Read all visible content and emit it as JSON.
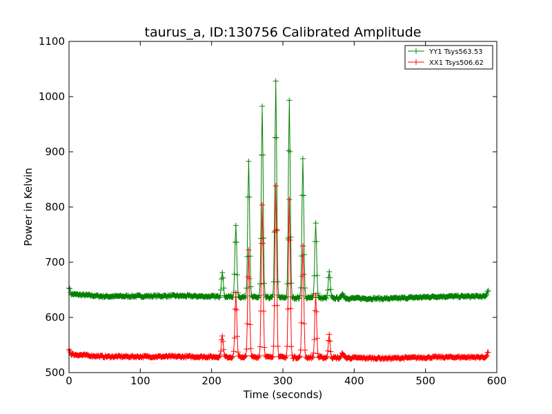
{
  "chart_data": {
    "type": "line",
    "title": "taurus_a, ID:130756 Calibrated Amplitude",
    "xlabel": "Time (seconds)",
    "ylabel": "Power in Kelvin",
    "xlim": [
      0,
      600
    ],
    "ylim": [
      500,
      1100
    ],
    "xticks": [
      0,
      100,
      200,
      300,
      400,
      500,
      600
    ],
    "yticks": [
      500,
      600,
      700,
      800,
      900,
      1000,
      1100
    ],
    "grid": false,
    "legend_position": "top-right",
    "marker": "plus",
    "series": [
      {
        "name": "YY1 Tsys563.53",
        "color": "#008000",
        "start": 0,
        "end": 588,
        "baseline": [
          [
            0,
            655
          ],
          [
            3,
            642
          ],
          [
            50,
            638
          ],
          [
            150,
            639
          ],
          [
            280,
            636
          ],
          [
            450,
            634
          ],
          [
            520,
            638
          ],
          [
            585,
            638
          ],
          [
            588,
            650
          ]
        ],
        "peaks": [
          [
            215,
            683
          ],
          [
            234,
            768
          ],
          [
            252,
            883
          ],
          [
            271,
            982
          ],
          [
            290,
            1027
          ],
          [
            309,
            992
          ],
          [
            328,
            887
          ],
          [
            346,
            772
          ],
          [
            365,
            683
          ],
          [
            384,
            644
          ]
        ]
      },
      {
        "name": "XX1 Tsys506.62",
        "color": "#ff0000",
        "start": 0,
        "end": 588,
        "baseline": [
          [
            0,
            543
          ],
          [
            3,
            533
          ],
          [
            50,
            529
          ],
          [
            150,
            529
          ],
          [
            280,
            528
          ],
          [
            450,
            526
          ],
          [
            520,
            528
          ],
          [
            585,
            528
          ],
          [
            588,
            538
          ]
        ],
        "peaks": [
          [
            215,
            568
          ],
          [
            234,
            645
          ],
          [
            252,
            722
          ],
          [
            271,
            805
          ],
          [
            290,
            838
          ],
          [
            309,
            813
          ],
          [
            328,
            728
          ],
          [
            346,
            640
          ],
          [
            365,
            568
          ],
          [
            384,
            536
          ]
        ]
      }
    ]
  }
}
